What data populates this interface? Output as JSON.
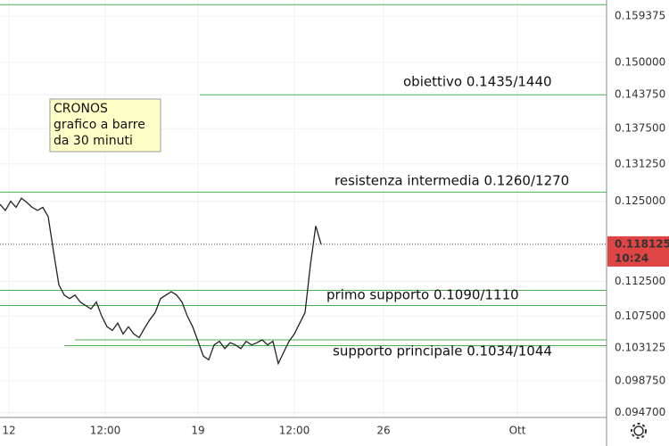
{
  "chart_data": {
    "type": "line",
    "log_scale": true,
    "grid": true,
    "info_box": [
      "CRONOS",
      "grafico a barre",
      "da 30 minuti"
    ],
    "x": [
      0,
      3,
      6,
      9,
      12,
      15,
      18,
      21,
      24,
      27,
      30,
      33,
      36,
      39,
      42,
      45,
      48,
      51,
      54,
      57,
      60,
      63,
      66,
      69,
      72,
      75,
      78,
      81,
      84,
      87,
      90,
      93,
      96,
      99,
      102,
      105,
      108,
      111,
      114,
      117,
      120,
      123,
      126,
      129,
      132,
      135,
      138,
      141,
      144,
      147,
      150,
      153,
      156,
      159,
      162,
      165,
      168,
      171,
      174,
      177,
      180
    ],
    "series": [
      {
        "color": "#222222",
        "values": [
          0.1245,
          0.1235,
          0.125,
          0.124,
          0.1255,
          0.1248,
          0.124,
          0.1235,
          0.124,
          0.1225,
          0.117,
          0.112,
          0.1105,
          0.11,
          0.1105,
          0.1095,
          0.109,
          0.1085,
          0.1095,
          0.1075,
          0.106,
          0.1055,
          0.1065,
          0.105,
          0.106,
          0.105,
          0.1045,
          0.1058,
          0.107,
          0.108,
          0.11,
          0.1105,
          0.111,
          0.1105,
          0.1095,
          0.1075,
          0.106,
          0.104,
          0.102,
          0.1015,
          0.1035,
          0.104,
          0.103,
          0.1038,
          0.1035,
          0.103,
          0.104,
          0.1035,
          0.1038,
          0.1042,
          0.1035,
          0.104,
          0.101,
          0.1025,
          0.104,
          0.105,
          0.1065,
          0.108,
          0.115,
          0.121,
          0.1181
        ]
      }
    ],
    "levels": [
      {
        "value": 0.1618,
        "color": "#4caf50"
      },
      {
        "value": 0.14375,
        "from": 112,
        "color": "#4caf50"
      },
      {
        "value": 0.1265,
        "color": "#4caf50"
      },
      {
        "value": 0.1112,
        "color": "#4caf50"
      },
      {
        "value": 0.109,
        "color": "#4caf50"
      },
      {
        "value": 0.1042,
        "from": 42,
        "color": "#4caf50"
      },
      {
        "value": 0.1034,
        "from": 36,
        "color": "#4caf50"
      }
    ],
    "annotations": [
      "obiettivo 0.1435/1440",
      "resistenza intermedia 0.1260/1270",
      "primo supporto 0.1090/1110",
      "supporto principale 0.1034/1044"
    ],
    "last_price": {
      "value": 0.118125,
      "label": "0.118125"
    },
    "countdown": "10:24",
    "last_color": "#e04545",
    "xlim": [
      0,
      340
    ],
    "xticks": [
      {
        "value": 5,
        "label": "12"
      },
      {
        "value": 59,
        "label": "12:00"
      },
      {
        "value": 111,
        "label": "19"
      },
      {
        "value": 165,
        "label": "12:00"
      },
      {
        "value": 215,
        "label": "26"
      },
      {
        "value": 290,
        "label": "Ott"
      }
    ],
    "ylim": [
      0.0941,
      0.1628
    ],
    "yticks": [
      {
        "value": 0.159375,
        "label": "0.159375"
      },
      {
        "value": 0.15,
        "label": "0.150000"
      },
      {
        "value": 0.14375,
        "label": "0.143750"
      },
      {
        "value": 0.1375,
        "label": "0.137500"
      },
      {
        "value": 0.13125,
        "label": "0.131250"
      },
      {
        "value": 0.125,
        "label": "0.125000"
      },
      {
        "value": 0.1125,
        "label": "0.112500"
      },
      {
        "value": 0.1075,
        "label": "0.107500"
      },
      {
        "value": 0.103125,
        "label": "0.103125"
      },
      {
        "value": 0.09875,
        "label": "0.098750"
      },
      {
        "value": 0.0947,
        "label": "0.094700"
      }
    ]
  }
}
